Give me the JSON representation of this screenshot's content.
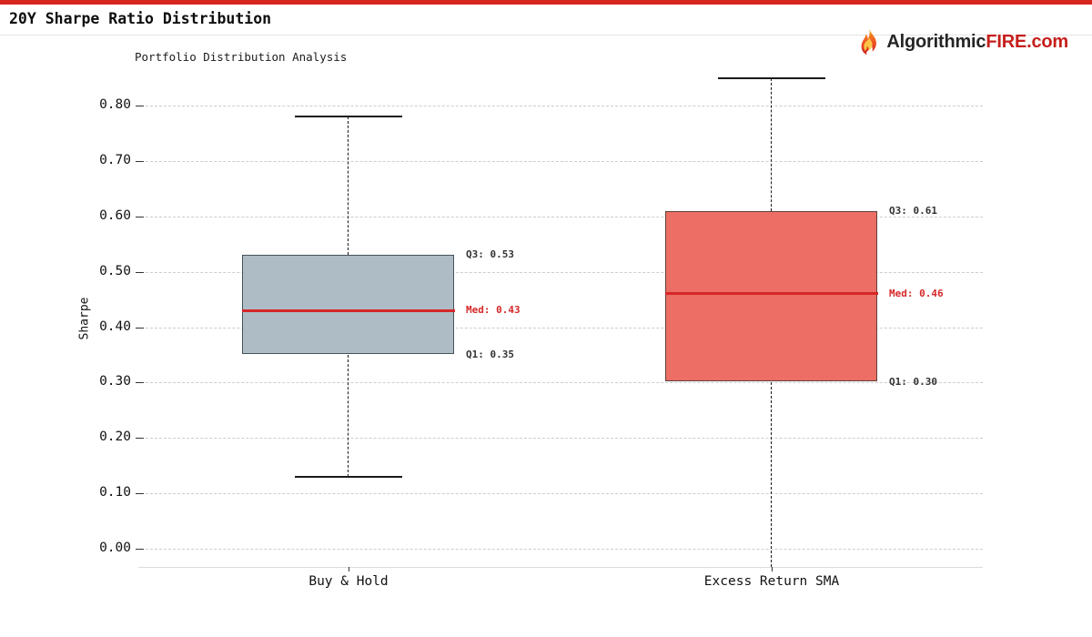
{
  "page": {
    "title": "20Y Sharpe Ratio Distribution",
    "accent_bar_color": "#d7261f",
    "brand": {
      "prefix": "Algorithmic",
      "highlight": "FIRE",
      "suffix": ".com",
      "prefix_color": "#252525",
      "highlight_color": "#c61f1c"
    }
  },
  "chart_data": {
    "type": "boxplot",
    "title": "Portfolio Distribution Analysis",
    "ylabel": "Sharpe",
    "ylim": [
      -0.03,
      0.85
    ],
    "grid": "horizontal dashed",
    "legend_position": "none",
    "yticks": [
      {
        "value": 0.0,
        "label": "0.00"
      },
      {
        "value": 0.1,
        "label": "0.10"
      },
      {
        "value": 0.2,
        "label": "0.20"
      },
      {
        "value": 0.3,
        "label": "0.30"
      },
      {
        "value": 0.4,
        "label": "0.40"
      },
      {
        "value": 0.5,
        "label": "0.50"
      },
      {
        "value": 0.6,
        "label": "0.60"
      },
      {
        "value": 0.7,
        "label": "0.70"
      },
      {
        "value": 0.8,
        "label": "0.80"
      }
    ],
    "categories": [
      "Buy & Hold",
      "Excess Return SMA"
    ],
    "series": [
      {
        "name": "Buy & Hold",
        "q1": 0.35,
        "median": 0.43,
        "q3": 0.53,
        "whisker_low": 0.13,
        "whisker_high": 0.78,
        "whisker_low_clipped": false,
        "box_fill": "#aebdc5",
        "box_border": "#45535a",
        "labels": {
          "q3": "Q3: 0.53",
          "med": "Med: 0.43",
          "q1": "Q1: 0.35"
        }
      },
      {
        "name": "Excess Return SMA",
        "q1": 0.3,
        "median": 0.46,
        "q3": 0.61,
        "whisker_low": -0.04,
        "whisker_high": 0.85,
        "whisker_low_clipped": true,
        "box_fill": "#ec6e64",
        "box_border": "#5f413c",
        "labels": {
          "q3": "Q3: 0.61",
          "med": "Med: 0.46",
          "q1": "Q1: 0.30"
        }
      }
    ],
    "median_color": "#d62728",
    "annotation_color": "#333333",
    "whisker_color": "#1a1a1a",
    "gridline_color": "#cdcdcd"
  }
}
